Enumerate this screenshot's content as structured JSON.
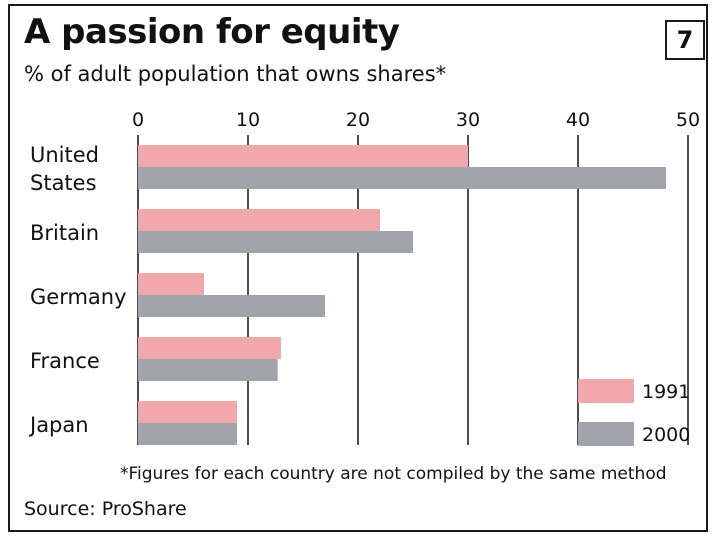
{
  "header": {
    "title": "A passion for equity",
    "subtitle": "% of adult population that owns shares*",
    "chart_number": "7"
  },
  "footer": {
    "footnote": "*Figures for each country are not compiled by the same method",
    "source": "Source: ProShare"
  },
  "colors": {
    "series_1991": "#f0a8ac",
    "series_2000": "#a1a4ab",
    "gridline": "#222222"
  },
  "chart_data": {
    "type": "bar",
    "orientation": "horizontal",
    "title": "A passion for equity",
    "subtitle": "% of adult population that owns shares*",
    "categories": [
      [
        "United",
        "States"
      ],
      [
        "Britain"
      ],
      [
        "Germany"
      ],
      [
        "France"
      ],
      [
        "Japan"
      ]
    ],
    "series": [
      {
        "name": "1991",
        "values": [
          30,
          22,
          6,
          13,
          9
        ]
      },
      {
        "name": "2000",
        "values": [
          48,
          25,
          17,
          12.7,
          9
        ]
      }
    ],
    "xlim": [
      0,
      50
    ],
    "xticks": [
      "0",
      "10",
      "20",
      "30",
      "40",
      "50"
    ],
    "xaxis_position": "top",
    "grid": "vertical",
    "legend": "bottom-right"
  }
}
